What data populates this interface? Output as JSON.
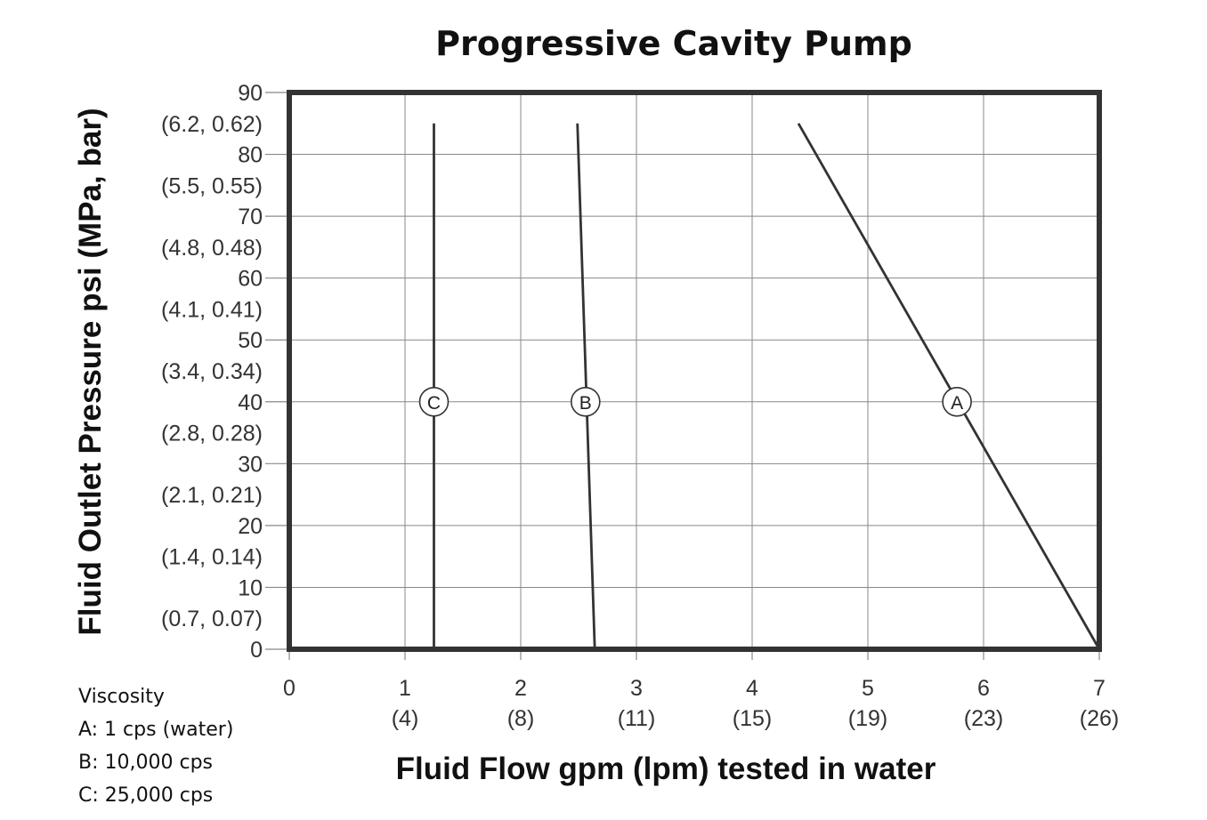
{
  "chart_data": {
    "type": "line",
    "title": "Progressive Cavity Pump",
    "xlabel": "Fluid Flow gpm (lpm) tested in water",
    "ylabel": "Fluid Outlet Pressure psi (MPa, bar)",
    "xlim": [
      0,
      7
    ],
    "ylim": [
      0,
      90
    ],
    "grid": true,
    "x_ticks": [
      {
        "value": 0,
        "label": "0",
        "sub": ""
      },
      {
        "value": 1,
        "label": "1",
        "sub": "(4)"
      },
      {
        "value": 2,
        "label": "2",
        "sub": "(8)"
      },
      {
        "value": 3,
        "label": "3",
        "sub": "(11)"
      },
      {
        "value": 4,
        "label": "4",
        "sub": "(15)"
      },
      {
        "value": 5,
        "label": "5",
        "sub": "(19)"
      },
      {
        "value": 6,
        "label": "6",
        "sub": "(23)"
      },
      {
        "value": 7,
        "label": "7",
        "sub": "(26)"
      }
    ],
    "y_ticks": [
      {
        "value": 0,
        "label": "0"
      },
      {
        "value": 5,
        "label": "(0.7, 0.07)"
      },
      {
        "value": 10,
        "label": "10"
      },
      {
        "value": 15,
        "label": "(1.4, 0.14)"
      },
      {
        "value": 20,
        "label": "20"
      },
      {
        "value": 25,
        "label": "(2.1, 0.21)"
      },
      {
        "value": 30,
        "label": "30"
      },
      {
        "value": 35,
        "label": "(2.8, 0.28)"
      },
      {
        "value": 40,
        "label": "40"
      },
      {
        "value": 45,
        "label": "(3.4, 0.34)"
      },
      {
        "value": 50,
        "label": "50"
      },
      {
        "value": 55,
        "label": "(4.1, 0.41)"
      },
      {
        "value": 60,
        "label": "60"
      },
      {
        "value": 65,
        "label": "(4.8, 0.48)"
      },
      {
        "value": 70,
        "label": "70"
      },
      {
        "value": 75,
        "label": "(5.5, 0.55)"
      },
      {
        "value": 80,
        "label": "80"
      },
      {
        "value": 85,
        "label": "(6.2, 0.62)"
      },
      {
        "value": 90,
        "label": "90"
      }
    ],
    "series": [
      {
        "name": "A",
        "x": [
          7.0,
          4.4
        ],
        "y": [
          0,
          85
        ],
        "marker": {
          "x": 5.77,
          "y": 40
        }
      },
      {
        "name": "B",
        "x": [
          2.64,
          2.49
        ],
        "y": [
          0,
          85
        ],
        "marker": {
          "x": 2.56,
          "y": 40
        }
      },
      {
        "name": "C",
        "x": [
          1.25,
          1.25
        ],
        "y": [
          0,
          85
        ],
        "marker": {
          "x": 1.25,
          "y": 40
        }
      }
    ],
    "legend": {
      "title": "Viscosity",
      "items": [
        "A: 1 cps (water)",
        "B: 10,000 cps",
        "C: 25,000 cps"
      ]
    },
    "colors": {
      "line": "#333333",
      "grid": "#888888",
      "frame": "#333333"
    }
  }
}
